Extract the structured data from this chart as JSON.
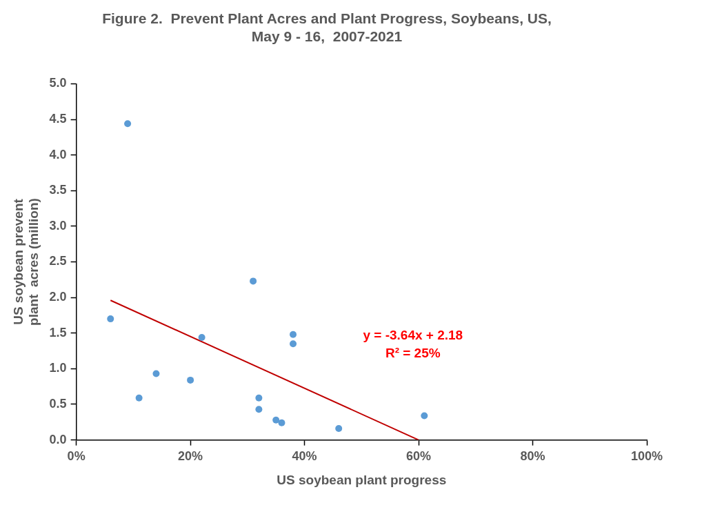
{
  "chart_data": {
    "type": "scatter",
    "title": "Figure 2.  Prevent Plant Acres and Plant Progress, Soybeans, US,\nMay 9 - 16,  2007-2021",
    "xlabel": "US soybean plant progress",
    "ylabel": "US soybean prevent\nplant  acres (million)",
    "annotations": [
      "y = -3.64x + 2.18\nR² = 25%"
    ],
    "series": [
      {
        "marker": "circle",
        "color": "#5b9bd5",
        "x": [
          6,
          9,
          11,
          14,
          20,
          22,
          31,
          32,
          32,
          35,
          36,
          38,
          38,
          46,
          61
        ],
        "values": [
          1.7,
          4.44,
          0.59,
          0.93,
          0.84,
          1.44,
          2.23,
          0.59,
          0.43,
          0.28,
          0.24,
          1.48,
          1.35,
          0.16,
          0.34
        ]
      },
      {
        "type": "line",
        "color": "#c00000",
        "x": [
          6,
          60
        ],
        "values": [
          1.96,
          0
        ]
      }
    ],
    "grid": false,
    "legend": false,
    "xlim": [
      0,
      100
    ],
    "xticks": [
      {
        "value": 0,
        "label": "0%"
      },
      {
        "value": 20,
        "label": "20%"
      },
      {
        "value": 40,
        "label": "40%"
      },
      {
        "value": 60,
        "label": "60%"
      },
      {
        "value": 80,
        "label": "80%"
      },
      {
        "value": 100,
        "label": "100%"
      }
    ],
    "ylim": [
      0,
      5
    ],
    "yticks": [
      {
        "value": 0,
        "label": "0.0"
      },
      {
        "value": 0.5,
        "label": "0.5"
      },
      {
        "value": 1,
        "label": "1.0"
      },
      {
        "value": 1.5,
        "label": "1.5"
      },
      {
        "value": 2,
        "label": "2.0"
      },
      {
        "value": 2.5,
        "label": "2.5"
      },
      {
        "value": 3,
        "label": "3.0"
      },
      {
        "value": 3.5,
        "label": "3.5"
      },
      {
        "value": 4,
        "label": "4.0"
      },
      {
        "value": 4.5,
        "label": "4.5"
      },
      {
        "value": 5,
        "label": "5.0"
      }
    ]
  }
}
